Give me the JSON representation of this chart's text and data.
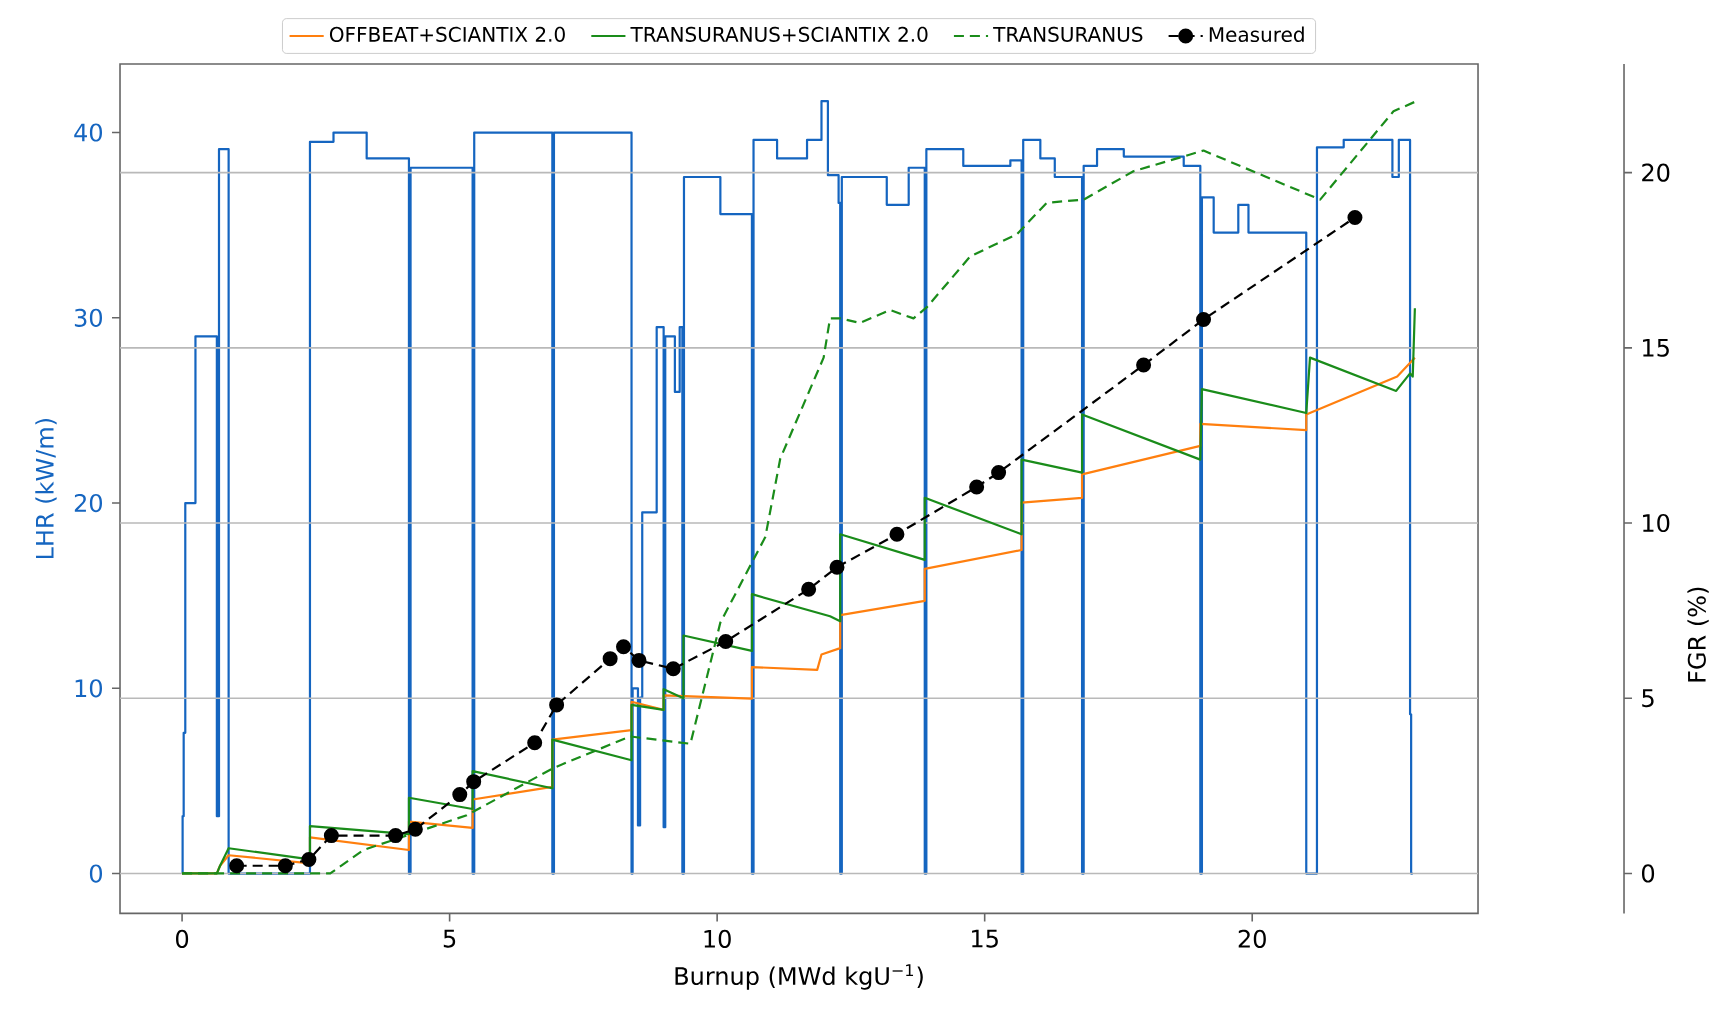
{
  "chart_data": {
    "type": "line",
    "xlabel": "Burnup (MWd kgU$^{−1}$)",
    "ylabel": "LHR (kW/m)",
    "y2label": "FGR (%)",
    "xlim": [
      -1.16,
      24.22
    ],
    "ylim": [
      -2.15,
      43.7
    ],
    "y2lim": [
      -1.14,
      23.1
    ],
    "xticks": [
      0,
      5,
      10,
      15,
      20
    ],
    "yticks": [
      0,
      10,
      20,
      30,
      40
    ],
    "y2ticks": [
      0,
      5,
      10,
      15,
      20
    ],
    "grid": "y2",
    "legend": "top",
    "series": [
      {
        "type": "step",
        "color": "#1565c0",
        "x": [
          0,
          0.01,
          0.03,
          0.06,
          0.25,
          0.65,
          0.69,
          0.87,
          2.39,
          2.83,
          3.45,
          4.24,
          4.27,
          5.43,
          5.46,
          6.92,
          6.95,
          8.4,
          8.42,
          8.52,
          8.56,
          8.6,
          8.87,
          9.0,
          9.03,
          9.21,
          9.3,
          9.35,
          9.38,
          10.06,
          10.65,
          10.68,
          11.12,
          11.68,
          11.95,
          12.07,
          12.27,
          12.3,
          12.33,
          13.17,
          13.58,
          13.88,
          13.91,
          14.6,
          15.48,
          15.69,
          15.72,
          16.04,
          16.31,
          16.82,
          16.85,
          17.1,
          17.6,
          18.72,
          19.03,
          19.06,
          19.28,
          19.74,
          19.93,
          21.01,
          21.21,
          21.71,
          22.62,
          22.74,
          22.95,
          22.97,
          23.0
        ],
        "values": [
          0,
          3.1,
          7.6,
          20.0,
          29.0,
          3.1,
          39.1,
          0,
          39.5,
          40.0,
          38.6,
          0,
          38.1,
          0,
          40.0,
          0,
          40.0,
          0,
          10.0,
          2.6,
          9.5,
          19.5,
          29.5,
          2.5,
          29.0,
          26.0,
          29.5,
          0,
          37.6,
          35.6,
          0,
          39.6,
          38.6,
          39.6,
          41.7,
          37.7,
          36.2,
          0,
          37.6,
          36.1,
          38.1,
          0,
          39.1,
          38.2,
          38.5,
          0,
          39.6,
          38.6,
          37.6,
          0,
          38.2,
          39.1,
          38.7,
          38.2,
          0,
          36.5,
          34.6,
          36.1,
          34.6,
          0,
          39.2,
          39.6,
          37.6,
          39.6,
          8.6,
          0,
          0
        ]
      },
      {
        "name": "OFFBEAT+SCIANTIX 2.0",
        "axis": "y2",
        "color": "#ff7f0e",
        "x": [
          0,
          0.65,
          0.71,
          0.87,
          2.39,
          2.39,
          4.24,
          4.24,
          5.43,
          5.43,
          6.92,
          6.92,
          8.4,
          8.4,
          9.0,
          9.0,
          10.65,
          10.65,
          11.87,
          11.95,
          12.3,
          12.3,
          13.88,
          13.88,
          15.69,
          15.69,
          16.82,
          16.82,
          19.03,
          19.03,
          21.01,
          21.01,
          22.71,
          23.04
        ],
        "values": [
          0,
          0,
          0.22,
          0.52,
          0.29,
          1.03,
          0.67,
          1.48,
          1.3,
          2.11,
          2.47,
          3.82,
          4.09,
          4.9,
          4.67,
          5.08,
          4.99,
          5.89,
          5.81,
          6.25,
          6.43,
          7.37,
          7.78,
          8.69,
          9.23,
          10.58,
          10.72,
          11.39,
          12.2,
          12.83,
          12.65,
          13.1,
          14.18,
          14.72
        ]
      },
      {
        "name": "TRANSURANUS+SCIANTIX 2.0",
        "axis": "y2",
        "color": "#1a8c1a",
        "x": [
          0,
          0.65,
          0.71,
          0.87,
          2.39,
          2.39,
          4.24,
          4.24,
          5.43,
          5.43,
          6.92,
          6.92,
          8.4,
          8.4,
          9.0,
          9.0,
          9.37,
          9.37,
          10.65,
          10.65,
          12.11,
          12.3,
          12.3,
          13.88,
          13.88,
          15.69,
          15.69,
          16.82,
          16.82,
          19.03,
          19.06,
          21.01,
          21.08,
          22.69,
          22.95,
          23.0,
          23.04
        ],
        "values": [
          0,
          0,
          0.22,
          0.72,
          0.4,
          1.35,
          1.12,
          2.16,
          1.84,
          2.92,
          2.43,
          3.82,
          3.23,
          4.81,
          4.67,
          5.26,
          5.0,
          6.79,
          6.35,
          7.97,
          7.34,
          7.2,
          9.68,
          8.95,
          10.72,
          9.68,
          11.81,
          11.44,
          13.1,
          11.81,
          13.82,
          13.14,
          14.72,
          13.77,
          14.27,
          14.18,
          16.13
        ]
      },
      {
        "name": "TRANSURANUS",
        "axis": "y2",
        "color": "#1a8c1a",
        "line_style": "dashed",
        "x": [
          0,
          2.77,
          3.39,
          5.32,
          6.94,
          8.37,
          9.5,
          10.06,
          10.9,
          11.18,
          11.99,
          12.11,
          12.3,
          12.67,
          13.23,
          13.67,
          13.92,
          14.73,
          15.6,
          16.16,
          16.85,
          17.78,
          18.78,
          19.09,
          21.27,
          22.64,
          23.04
        ],
        "values": [
          0,
          0,
          0.67,
          1.66,
          3.01,
          3.91,
          3.7,
          7.16,
          9.6,
          11.84,
          14.72,
          15.84,
          15.84,
          15.71,
          16.08,
          15.84,
          16.16,
          17.61,
          18.24,
          19.14,
          19.23,
          20.04,
          20.49,
          20.63,
          19.23,
          21.75,
          22.02
        ]
      },
      {
        "name": "Measured",
        "axis": "y2",
        "color": "#000000",
        "line_style": "dashed",
        "marker": "circle",
        "x": [
          1.02,
          1.93,
          2.37,
          2.79,
          3.99,
          4.36,
          5.19,
          5.45,
          6.59,
          7.0,
          8.0,
          8.25,
          8.54,
          9.18,
          10.16,
          11.71,
          12.24,
          13.36,
          14.85,
          15.26,
          17.97,
          19.09,
          21.92
        ],
        "values": [
          0.22,
          0.22,
          0.4,
          1.08,
          1.08,
          1.26,
          2.25,
          2.62,
          3.73,
          4.81,
          6.13,
          6.47,
          6.08,
          5.84,
          6.62,
          8.11,
          8.74,
          9.68,
          11.03,
          11.44,
          14.51,
          15.81,
          18.72
        ]
      }
    ]
  }
}
